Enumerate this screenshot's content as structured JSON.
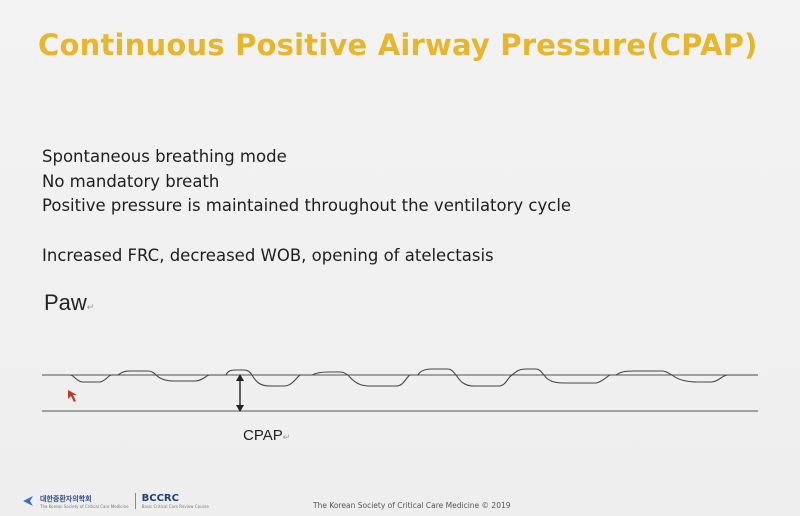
{
  "slide": {
    "title": "Continuous Positive Airway Pressure(CPAP)",
    "bullets": [
      "Spontaneous breathing mode",
      "No mandatory breath",
      "Positive pressure is maintained throughout the ventilatory cycle"
    ],
    "effects": "Increased FRC, decreased WOB, opening of atelectasis"
  },
  "diagram": {
    "paw_label": "Paw",
    "cpap_label": "CPAP",
    "return_mark": "↵"
  },
  "footer": {
    "society_logo_text": "대한중환자의학회",
    "society_logo_sub": "The Korean Society of Critical Care Medicine",
    "bccrc_text": "BCCRC",
    "bccrc_sub": "Basic Critical Care Review Course",
    "copyright": "The Korean Society of Critical Care Medicine © 2019"
  },
  "colors": {
    "title": "#e8b62a",
    "cursor": "#c0392b"
  },
  "icons": [
    "cursor-icon",
    "double-arrow-icon",
    "society-logo-icon"
  ]
}
